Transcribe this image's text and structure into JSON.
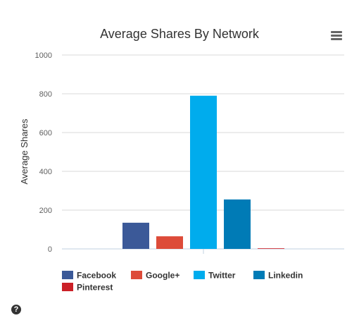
{
  "chart_data": {
    "type": "bar",
    "title": "Average Shares By Network",
    "xlabel": "",
    "ylabel": "Average Shares",
    "ylim": [
      0,
      1000
    ],
    "yticks": [
      0,
      200,
      400,
      600,
      800,
      1000
    ],
    "grid": true,
    "legend": "bottom-left",
    "series": [
      {
        "name": "Facebook",
        "value": 135,
        "color": "#3b5998"
      },
      {
        "name": "Google+",
        "value": 65,
        "color": "#dd4b39"
      },
      {
        "name": "Twitter",
        "value": 790,
        "color": "#00aced"
      },
      {
        "name": "Linkedin",
        "value": 255,
        "color": "#007bb6"
      },
      {
        "name": "Pinterest",
        "value": 3,
        "color": "#cb2027"
      }
    ]
  },
  "ui": {
    "menu_icon": "hamburger-menu-icon",
    "help_icon": "question-circle-icon",
    "help_glyph": "?"
  }
}
